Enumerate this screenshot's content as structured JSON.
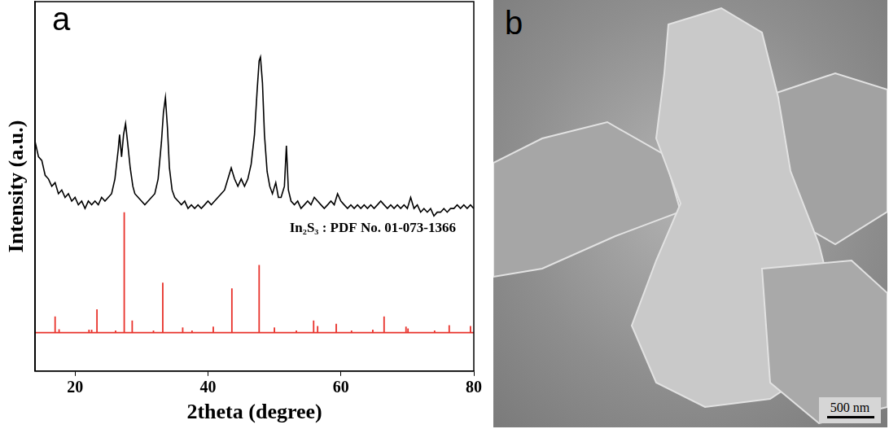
{
  "chart_data": {
    "type": "line",
    "panel": "a",
    "xlabel": "2theta (degree)",
    "ylabel": "Intensity (a.u.)",
    "xlim": [
      14,
      80
    ],
    "xticks": [
      20,
      40,
      60,
      80
    ],
    "ylim": [
      0,
      100
    ],
    "tick_labels": "x",
    "grid": false,
    "series": [
      {
        "color": "#000000",
        "x": [
          14,
          14.5,
          15,
          15.5,
          16,
          16.5,
          17,
          17.5,
          18,
          18.5,
          19,
          19.5,
          20,
          20.5,
          21,
          21.5,
          22,
          22.5,
          23,
          23.5,
          24,
          24.5,
          25,
          25.5,
          26,
          26.5,
          26.7,
          27,
          27.3,
          27.6,
          27.9,
          28.3,
          28.7,
          29,
          29.5,
          30,
          30.5,
          31,
          31.5,
          32,
          32.5,
          33,
          33.3,
          33.6,
          33.9,
          34.2,
          34.6,
          35,
          35.5,
          36,
          36.5,
          37,
          37.5,
          38,
          38.5,
          39,
          39.5,
          40,
          40.5,
          41,
          41.5,
          42,
          42.5,
          43,
          43.5,
          44,
          44.5,
          45,
          45.5,
          46,
          46.5,
          47,
          47.4,
          47.7,
          47.9,
          48.2,
          48.5,
          48.9,
          49.3,
          49.7,
          50.2,
          50.6,
          51,
          51.5,
          51.8,
          52.1,
          52.5,
          53,
          53.5,
          54,
          54.5,
          55,
          55.5,
          56,
          56.5,
          57,
          57.5,
          58,
          58.5,
          59,
          59.5,
          60,
          60.5,
          61,
          61.5,
          62,
          62.5,
          63,
          63.5,
          64,
          64.5,
          65,
          65.5,
          66,
          66.5,
          67,
          67.5,
          68,
          68.5,
          69,
          69.5,
          70,
          70.5,
          71,
          71.5,
          72,
          72.5,
          73,
          73.5,
          74,
          74.5,
          75,
          75.5,
          76,
          76.5,
          77,
          77.5,
          78,
          78.5,
          79,
          79.5,
          80
        ],
        "values": [
          62,
          58,
          57,
          53,
          52,
          50,
          51,
          48,
          49,
          47,
          48,
          46,
          47,
          45,
          46,
          44,
          46,
          45,
          46,
          45,
          47,
          46,
          47,
          48,
          52,
          60,
          64,
          58,
          64,
          67,
          62,
          55,
          50,
          48,
          47,
          46,
          45,
          46,
          47,
          48,
          52,
          62,
          70,
          74,
          66,
          55,
          49,
          47,
          46,
          45,
          46,
          44,
          45,
          44,
          45,
          44,
          45,
          46,
          45,
          46,
          47,
          48,
          49,
          52,
          55,
          52,
          50,
          52,
          50,
          52,
          56,
          64,
          76,
          84,
          85,
          78,
          64,
          54,
          50,
          48,
          51,
          47,
          47,
          50,
          61,
          49,
          46,
          45,
          46,
          44,
          45,
          46,
          45,
          47,
          46,
          45,
          44,
          45,
          46,
          45,
          48,
          46,
          45,
          44,
          45,
          44,
          45,
          44,
          45,
          44,
          45,
          44,
          45,
          46,
          45,
          44,
          45,
          44,
          45,
          44,
          45,
          44,
          47,
          44,
          45,
          43,
          44,
          43,
          44,
          42,
          43,
          43,
          44,
          43,
          44,
          44,
          45,
          44,
          45,
          44,
          45,
          44
        ]
      },
      {
        "name": "In₂S₃ : PDF No. 01-073-1366",
        "type": "bar",
        "color": "#e8312a",
        "base": 10.4,
        "x": [
          17.0,
          17.6,
          22.1,
          22.5,
          23.3,
          26.1,
          27.4,
          28.6,
          31.8,
          33.2,
          36.2,
          37.6,
          40.8,
          43.6,
          47.7,
          50.0,
          53.3,
          55.9,
          56.5,
          59.3,
          61.6,
          64.8,
          66.5,
          69.8,
          70.1,
          74.1,
          76.3,
          79.5
        ],
        "values": [
          14.8,
          11.3,
          11.2,
          11.2,
          16.7,
          11.0,
          43.0,
          13.7,
          11.0,
          23.9,
          11.8,
          11.0,
          12.0,
          22.4,
          28.7,
          11.8,
          11.0,
          13.7,
          12.2,
          12.8,
          11.0,
          11.2,
          14.8,
          12.0,
          11.5,
          11.0,
          12.4,
          12.2
        ]
      }
    ]
  },
  "image_panel": {
    "panel": "b",
    "scale_bar": "500 nm"
  }
}
